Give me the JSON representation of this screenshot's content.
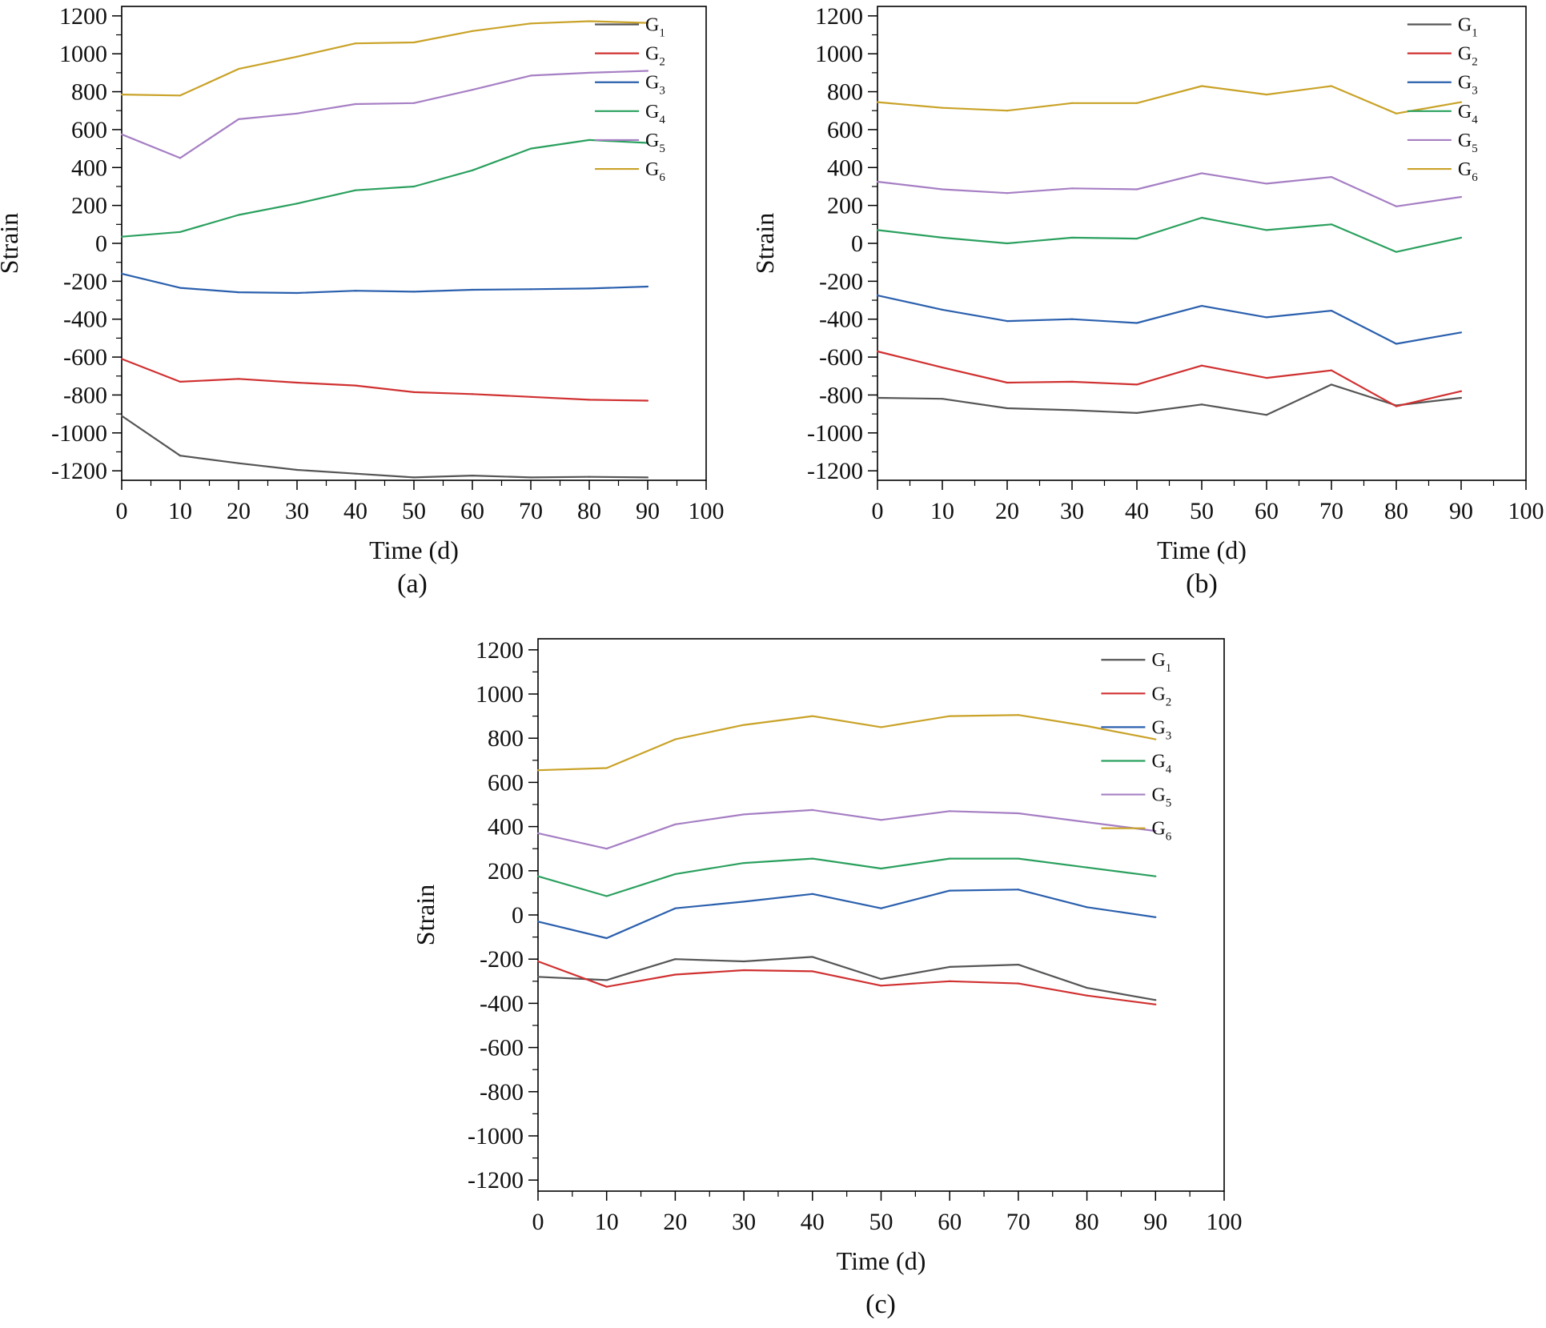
{
  "chart_data": [
    {
      "type": "line",
      "panel_label": "(a)",
      "xlabel": "Time (d)",
      "ylabel": "Strain",
      "xlim": [
        0,
        100
      ],
      "ylim": [
        -1250,
        1250
      ],
      "x_ticks": [
        0,
        10,
        20,
        30,
        40,
        50,
        60,
        70,
        80,
        90,
        100
      ],
      "y_ticks": [
        -1200,
        -1000,
        -800,
        -600,
        -400,
        -200,
        0,
        200,
        400,
        600,
        800,
        1000,
        1200
      ],
      "x": [
        0,
        10,
        20,
        30,
        40,
        50,
        60,
        70,
        80,
        90
      ],
      "grid": false,
      "legend": "top-right",
      "series": [
        {
          "name": "G",
          "sub": "1",
          "color": "#555555",
          "values": [
            -910,
            -1120,
            -1160,
            -1195,
            -1215,
            -1235,
            -1225,
            -1235,
            -1232,
            -1235
          ]
        },
        {
          "name": "G",
          "sub": "2",
          "color": "#d03030",
          "values": [
            -610,
            -730,
            -715,
            -735,
            -750,
            -785,
            -795,
            -810,
            -825,
            -830
          ]
        },
        {
          "name": "G",
          "sub": "3",
          "color": "#2a5fad",
          "values": [
            -160,
            -235,
            -258,
            -262,
            -250,
            -255,
            -245,
            -242,
            -238,
            -228
          ]
        },
        {
          "name": "G",
          "sub": "4",
          "color": "#2aa05e",
          "values": [
            35,
            60,
            150,
            210,
            280,
            300,
            385,
            500,
            545,
            530
          ]
        },
        {
          "name": "G",
          "sub": "5",
          "color": "#a67fc4",
          "values": [
            575,
            450,
            655,
            685,
            735,
            740,
            810,
            885,
            900,
            910
          ]
        },
        {
          "name": "G",
          "sub": "6",
          "color": "#c9a227",
          "values": [
            785,
            780,
            920,
            985,
            1055,
            1060,
            1120,
            1160,
            1172,
            1163
          ]
        }
      ]
    },
    {
      "type": "line",
      "panel_label": "(b)",
      "xlabel": "Time (d)",
      "ylabel": "Strain",
      "xlim": [
        0,
        100
      ],
      "ylim": [
        -1250,
        1250
      ],
      "x_ticks": [
        0,
        10,
        20,
        30,
        40,
        50,
        60,
        70,
        80,
        90,
        100
      ],
      "y_ticks": [
        -1200,
        -1000,
        -800,
        -600,
        -400,
        -200,
        0,
        200,
        400,
        600,
        800,
        1000,
        1200
      ],
      "x": [
        0,
        10,
        20,
        30,
        40,
        50,
        60,
        70,
        80,
        90
      ],
      "grid": false,
      "legend": "top-right",
      "series": [
        {
          "name": "G",
          "sub": "1",
          "color": "#555555",
          "values": [
            -815,
            -820,
            -870,
            -880,
            -895,
            -850,
            -905,
            -745,
            -855,
            -815
          ]
        },
        {
          "name": "G",
          "sub": "2",
          "color": "#d03030",
          "values": [
            -570,
            -655,
            -735,
            -730,
            -745,
            -645,
            -710,
            -670,
            -860,
            -780
          ]
        },
        {
          "name": "G",
          "sub": "3",
          "color": "#2a5fad",
          "values": [
            -275,
            -350,
            -410,
            -400,
            -420,
            -330,
            -390,
            -355,
            -530,
            -470
          ]
        },
        {
          "name": "G",
          "sub": "4",
          "color": "#2aa05e",
          "values": [
            70,
            30,
            0,
            30,
            25,
            135,
            70,
            100,
            -45,
            30
          ]
        },
        {
          "name": "G",
          "sub": "5",
          "color": "#a67fc4",
          "values": [
            325,
            285,
            265,
            290,
            285,
            370,
            315,
            350,
            195,
            245
          ]
        },
        {
          "name": "G",
          "sub": "6",
          "color": "#c9a227",
          "values": [
            745,
            715,
            700,
            740,
            740,
            830,
            785,
            830,
            685,
            745
          ]
        }
      ]
    },
    {
      "type": "line",
      "panel_label": "(c)",
      "xlabel": "Time (d)",
      "ylabel": "Strain",
      "xlim": [
        0,
        100
      ],
      "ylim": [
        -1250,
        1250
      ],
      "x_ticks": [
        0,
        10,
        20,
        30,
        40,
        50,
        60,
        70,
        80,
        90,
        100
      ],
      "y_ticks": [
        -1200,
        -1000,
        -800,
        -600,
        -400,
        -200,
        0,
        200,
        400,
        600,
        800,
        1000,
        1200
      ],
      "x": [
        0,
        10,
        20,
        30,
        40,
        50,
        60,
        70,
        80,
        90
      ],
      "grid": false,
      "legend": "top-right",
      "series": [
        {
          "name": "G",
          "sub": "1",
          "color": "#555555",
          "values": [
            -280,
            -295,
            -200,
            -210,
            -190,
            -290,
            -235,
            -225,
            -330,
            -385
          ]
        },
        {
          "name": "G",
          "sub": "2",
          "color": "#d03030",
          "values": [
            -210,
            -325,
            -270,
            -250,
            -255,
            -320,
            -300,
            -310,
            -365,
            -405
          ]
        },
        {
          "name": "G",
          "sub": "3",
          "color": "#2a5fad",
          "values": [
            -30,
            -105,
            30,
            60,
            95,
            30,
            110,
            115,
            35,
            -10
          ]
        },
        {
          "name": "G",
          "sub": "4",
          "color": "#2aa05e",
          "values": [
            175,
            85,
            185,
            235,
            255,
            210,
            255,
            255,
            215,
            175
          ]
        },
        {
          "name": "G",
          "sub": "5",
          "color": "#a67fc4",
          "values": [
            370,
            300,
            410,
            455,
            475,
            430,
            470,
            460,
            420,
            380
          ]
        },
        {
          "name": "G",
          "sub": "6",
          "color": "#c9a227",
          "values": [
            655,
            665,
            795,
            860,
            900,
            850,
            900,
            905,
            855,
            795
          ]
        }
      ]
    }
  ]
}
